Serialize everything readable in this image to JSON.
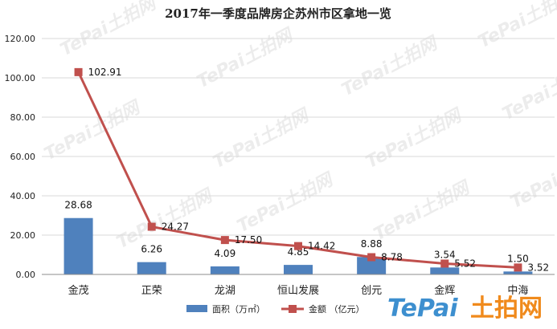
{
  "chart_data": {
    "type": "bar",
    "title": "2017年一季度品牌房企苏州市区拿地一览",
    "categories": [
      "金茂",
      "正荣",
      "龙湖",
      "恒山发展",
      "创元",
      "金辉",
      "中海"
    ],
    "ylim": [
      0,
      120
    ],
    "yticks": [
      "0.00",
      "20.00",
      "40.00",
      "60.00",
      "80.00",
      "100.00",
      "120.00"
    ],
    "grid": true,
    "legend_position": "bottom",
    "series": [
      {
        "name": "面积（万㎡）",
        "type": "bar",
        "color": "#4f81bd",
        "values": [
          28.68,
          6.26,
          4.09,
          4.85,
          8.88,
          3.54,
          1.5
        ],
        "labels": [
          "28.68",
          "6.26",
          "4.09",
          "4.85",
          "8.88",
          "3.54",
          "1.50"
        ]
      },
      {
        "name": "金额 （亿元）",
        "type": "line",
        "color": "#c0504d",
        "values": [
          102.91,
          24.27,
          17.5,
          14.42,
          8.78,
          5.52,
          3.52
        ],
        "labels": [
          "102.91",
          "24.27",
          "17.50",
          "14.42",
          "8.78",
          "5.52",
          "3.52"
        ]
      }
    ]
  },
  "watermark": {
    "text": "TePai土拍网",
    "brand_latin": "TePai",
    "brand_cn": "土拍网",
    "brand_colors": [
      "#3d8fcf",
      "#f08a1c"
    ]
  }
}
